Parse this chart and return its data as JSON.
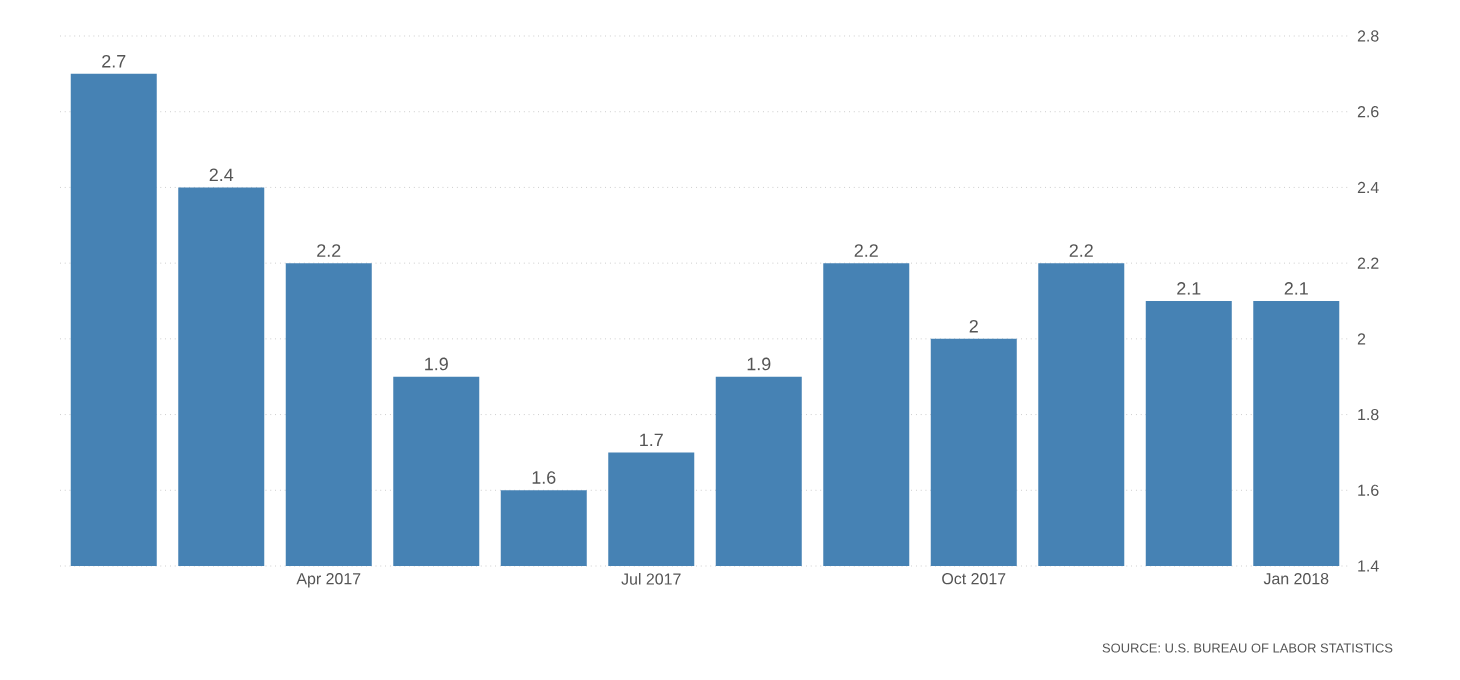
{
  "chart_data": {
    "type": "bar",
    "categories": [
      null,
      null,
      "Apr 2017",
      null,
      null,
      "Jul 2017",
      null,
      null,
      "Oct 2017",
      null,
      null,
      "Jan 2018"
    ],
    "values": [
      2.7,
      2.4,
      2.2,
      1.9,
      1.6,
      1.7,
      1.9,
      2.2,
      2,
      2.2,
      2.1,
      2.1
    ],
    "color": "#4682b4",
    "ylim": [
      1.4,
      2.8
    ],
    "yticks": [
      1.4,
      1.6,
      1.8,
      2,
      2.2,
      2.4,
      2.6,
      2.8
    ],
    "grid": "y",
    "data_labels": true,
    "annotations": [
      "SOURCE: U.S. BUREAU OF LABOR STATISTICS"
    ]
  }
}
